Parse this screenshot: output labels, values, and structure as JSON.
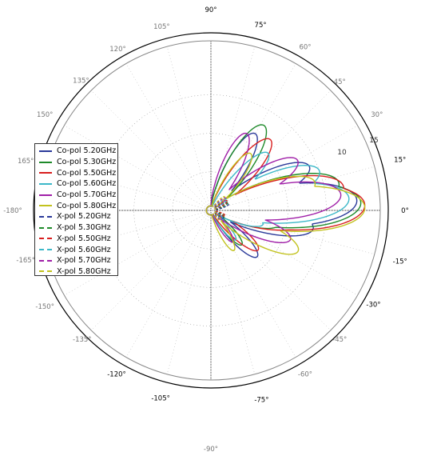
{
  "chart_data": {
    "type": "polar-line",
    "angle_ticks": [
      "0°",
      "15°",
      "30°",
      "45°",
      "60°",
      "75°",
      "90°",
      "105°",
      "120°",
      "135°",
      "150°",
      "165°",
      "-180°",
      "-165°",
      "-150°",
      "-135°",
      "-120°",
      "-105°",
      "-90°",
      "-75°",
      "-60°",
      "-45°",
      "-30°",
      "-15°"
    ],
    "radial_ticks": [
      "10",
      "15"
    ],
    "series": [
      {
        "name": "Co-pol 5.20GHz",
        "color": "#2b3a9a",
        "style": "solid",
        "lobes": [
          [
            4,
            19
          ],
          [
            24,
            14
          ],
          [
            60,
            11.5
          ],
          [
            -10,
            13.5
          ],
          [
            -45,
            8.5
          ]
        ]
      },
      {
        "name": "Co-pol 5.30GHz",
        "color": "#1e8a2a",
        "style": "solid",
        "lobes": [
          [
            3,
            19.5
          ],
          [
            12,
            17
          ],
          [
            58,
            13
          ],
          [
            -12,
            9
          ],
          [
            -48,
            6
          ]
        ]
      },
      {
        "name": "Co-pol 5.50GHz",
        "color": "#d81e1e",
        "style": "solid",
        "lobes": [
          [
            2,
            20
          ],
          [
            10,
            17.5
          ],
          [
            50,
            12
          ],
          [
            -8,
            12
          ],
          [
            -40,
            8
          ]
        ]
      },
      {
        "name": "Co-pol 5.60GHz",
        "color": "#3cb8c8",
        "style": "solid",
        "lobes": [
          [
            5,
            18
          ],
          [
            20,
            15
          ],
          [
            45,
            10.5
          ],
          [
            -15,
            7
          ],
          [
            -50,
            5
          ]
        ]
      },
      {
        "name": "Co-pol 5.70GHz",
        "color": "#a020a8",
        "style": "solid",
        "lobes": [
          [
            7,
            17
          ],
          [
            30,
            13
          ],
          [
            65,
            11
          ],
          [
            -20,
            11
          ],
          [
            -55,
            5
          ]
        ]
      },
      {
        "name": "Co-pol 5.80GHz",
        "color": "#c2c21e",
        "style": "solid",
        "lobes": [
          [
            1,
            20
          ],
          [
            15,
            14
          ],
          [
            55,
            9
          ],
          [
            -25,
            12.5
          ],
          [
            -60,
            6
          ]
        ]
      },
      {
        "name": "X-pol 5.20GHz",
        "color": "#2b3a9a",
        "style": "dashed",
        "lobes": [
          [
            20,
            2.5
          ],
          [
            -30,
            2
          ]
        ]
      },
      {
        "name": "X-pol 5.30GHz",
        "color": "#1e8a2a",
        "style": "dashed",
        "lobes": [
          [
            25,
            2.5
          ],
          [
            -25,
            2
          ]
        ]
      },
      {
        "name": "X-pol 5.50GHz",
        "color": "#d81e1e",
        "style": "dashed",
        "lobes": [
          [
            30,
            2.5
          ],
          [
            -20,
            2
          ]
        ]
      },
      {
        "name": "X-pol 5.60GHz",
        "color": "#3cb8c8",
        "style": "dashed",
        "lobes": [
          [
            35,
            2.5
          ],
          [
            -35,
            2
          ]
        ]
      },
      {
        "name": "X-pol 5.70GHz",
        "color": "#a020a8",
        "style": "dashed",
        "lobes": [
          [
            40,
            2.5
          ],
          [
            -40,
            2
          ]
        ]
      },
      {
        "name": "X-pol 5.80GHz",
        "color": "#c2c21e",
        "style": "dashed",
        "lobes": [
          [
            45,
            2.5
          ],
          [
            -45,
            2
          ]
        ]
      }
    ],
    "legend_position": "left",
    "grid": true
  }
}
